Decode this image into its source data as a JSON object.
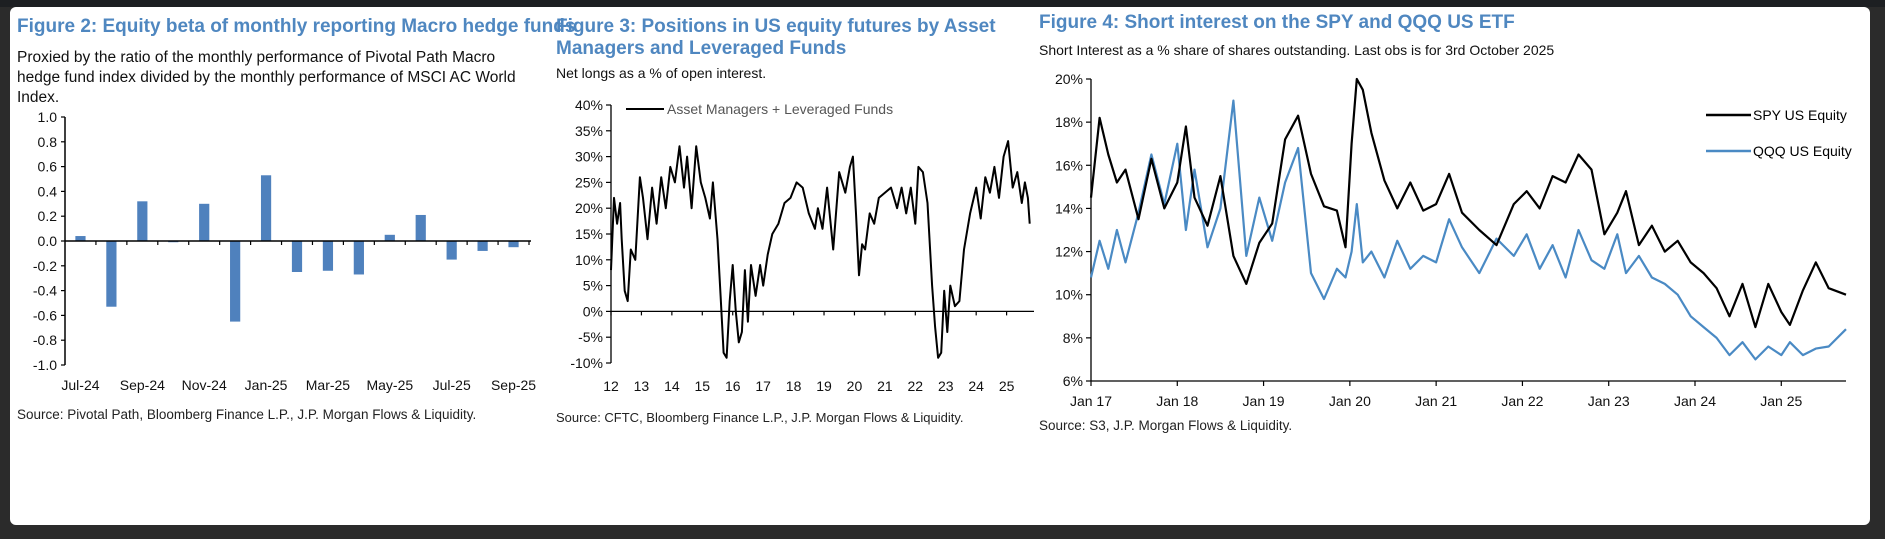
{
  "figures": [
    {
      "title": "Figure 2: Equity beta of monthly reporting Macro hedge funds",
      "subtitle": "Proxied by the ratio of the monthly performance of Pivotal Path Macro hedge fund index divided by the monthly performance of MSCI AC World Index.",
      "source": "Source: Pivotal Path, Bloomberg Finance L.P., J.P. Morgan Flows & Liquidity."
    },
    {
      "title": "Figure 3: Positions in US equity futures by Asset Managers and Leveraged Funds",
      "subtitle": "Net longs as a % of open interest.",
      "source": "Source: CFTC, Bloomberg Finance L.P., J.P. Morgan Flows & Liquidity."
    },
    {
      "title": "Figure 4: Short interest on the SPY and QQQ US ETF",
      "subtitle": "Short Interest as a % share of shares outstanding. Last obs is for 3rd October 2025",
      "source": "Source: S3, J.P. Morgan Flows & Liquidity."
    }
  ],
  "colors": {
    "title": "#4f87c0",
    "bar": "#4f81bd",
    "spy": "#000000",
    "qqq": "#4a8ac4",
    "background": "#2b2b2b"
  },
  "chart_data": [
    {
      "type": "bar",
      "title": "Figure 2: Equity beta of monthly reporting Macro hedge funds",
      "xlabel": "",
      "ylabel": "",
      "ylim": [
        -1.0,
        1.0
      ],
      "yticks": [
        "1.0",
        "0.8",
        "0.6",
        "0.4",
        "0.2",
        "0.0",
        "-0.2",
        "-0.4",
        "-0.6",
        "-0.8",
        "-1.0"
      ],
      "categories": [
        "Jul-24",
        "Aug-24",
        "Sep-24",
        "Oct-24",
        "Nov-24",
        "Dec-24",
        "Jan-25",
        "Feb-25",
        "Mar-25",
        "Apr-25",
        "May-25",
        "Jun-25",
        "Jul-25",
        "Aug-25",
        "Sep-25"
      ],
      "xtick_labels": [
        "Jul-24",
        "Sep-24",
        "Nov-24",
        "Jan-25",
        "Mar-25",
        "May-25",
        "Jul-25",
        "Sep-25"
      ],
      "values": [
        0.04,
        -0.53,
        0.32,
        -0.01,
        0.3,
        -0.65,
        0.53,
        -0.25,
        -0.24,
        -0.27,
        0.05,
        0.21,
        -0.15,
        -0.08,
        -0.05
      ],
      "legend": "none",
      "grid": false
    },
    {
      "type": "line",
      "title": "Figure 3: Positions in US equity futures by Asset Managers and Leveraged Funds",
      "xlabel": "",
      "ylabel": "Net longs as a % of open interest",
      "ylim": [
        -10,
        40
      ],
      "yticks": [
        "40%",
        "35%",
        "30%",
        "25%",
        "20%",
        "15%",
        "10%",
        "5%",
        "0%",
        "-5%",
        "-10%"
      ],
      "xlim": [
        2012,
        2025.9
      ],
      "xtick_labels": [
        "12",
        "13",
        "14",
        "15",
        "16",
        "17",
        "18",
        "19",
        "20",
        "21",
        "22",
        "23",
        "24",
        "25"
      ],
      "legend": "top",
      "grid": false,
      "series": [
        {
          "name": "Asset Managers + Leveraged Funds",
          "x": [
            2012.0,
            2012.1,
            2012.2,
            2012.3,
            2012.35,
            2012.45,
            2012.55,
            2012.65,
            2012.8,
            2012.95,
            2013.05,
            2013.2,
            2013.35,
            2013.5,
            2013.65,
            2013.8,
            2013.95,
            2014.1,
            2014.25,
            2014.4,
            2014.5,
            2014.65,
            2014.8,
            2014.95,
            2015.1,
            2015.25,
            2015.35,
            2015.5,
            2015.6,
            2015.7,
            2015.8,
            2015.9,
            2016.0,
            2016.1,
            2016.2,
            2016.3,
            2016.4,
            2016.5,
            2016.6,
            2016.75,
            2016.9,
            2017.0,
            2017.15,
            2017.3,
            2017.5,
            2017.7,
            2017.9,
            2018.1,
            2018.3,
            2018.5,
            2018.7,
            2018.8,
            2018.95,
            2019.1,
            2019.3,
            2019.5,
            2019.7,
            2019.85,
            2019.95,
            2020.05,
            2020.15,
            2020.25,
            2020.35,
            2020.5,
            2020.65,
            2020.8,
            2021.0,
            2021.2,
            2021.4,
            2021.55,
            2021.7,
            2021.85,
            2022.0,
            2022.1,
            2022.25,
            2022.4,
            2022.55,
            2022.65,
            2022.75,
            2022.85,
            2022.95,
            2023.05,
            2023.15,
            2023.3,
            2023.45,
            2023.6,
            2023.8,
            2024.0,
            2024.15,
            2024.3,
            2024.45,
            2024.6,
            2024.75,
            2024.9,
            2025.05,
            2025.2,
            2025.35,
            2025.5,
            2025.6,
            2025.7,
            2025.76
          ],
          "y": [
            8,
            22,
            17,
            21,
            14,
            4,
            2,
            12,
            10,
            26,
            22,
            14,
            24,
            17,
            26,
            20,
            28,
            25,
            32,
            24,
            30,
            20,
            32,
            25,
            22,
            18,
            25,
            14,
            3,
            -8,
            -9,
            2,
            9,
            0,
            -6,
            -4,
            8,
            -2,
            9,
            3,
            9,
            5,
            11,
            15,
            17,
            21,
            22,
            25,
            24,
            19,
            16,
            20,
            16,
            24,
            12,
            27,
            23,
            28,
            30,
            19,
            7,
            13,
            12,
            19,
            17,
            22,
            23,
            24,
            20,
            24,
            19,
            24,
            17,
            28,
            27,
            21,
            5,
            -3,
            -9,
            -8,
            4,
            -4,
            5,
            1,
            2,
            12,
            19,
            24,
            18,
            26,
            23,
            28,
            22,
            30,
            33,
            24,
            27,
            21,
            25,
            22,
            17
          ]
        }
      ]
    },
    {
      "type": "line",
      "title": "Figure 4: Short interest on the SPY and QQQ US ETF",
      "xlabel": "",
      "ylabel": "Short Interest as a % share of shares outstanding",
      "ylim": [
        6,
        20
      ],
      "yticks": [
        "20%",
        "18%",
        "16%",
        "14%",
        "12%",
        "10%",
        "8%",
        "6%"
      ],
      "xlim": [
        2017.0,
        2025.75
      ],
      "xtick_labels": [
        "Jan 17",
        "Jan 18",
        "Jan 19",
        "Jan 20",
        "Jan 21",
        "Jan 22",
        "Jan 23",
        "Jan 24",
        "Jan 25"
      ],
      "legend": "top-right",
      "grid": false,
      "series": [
        {
          "name": "SPY US Equity",
          "x": [
            2017.0,
            2017.1,
            2017.2,
            2017.3,
            2017.4,
            2017.55,
            2017.7,
            2017.85,
            2018.0,
            2018.1,
            2018.2,
            2018.35,
            2018.5,
            2018.65,
            2018.8,
            2018.95,
            2019.1,
            2019.25,
            2019.4,
            2019.55,
            2019.7,
            2019.85,
            2019.95,
            2020.02,
            2020.08,
            2020.15,
            2020.25,
            2020.4,
            2020.55,
            2020.7,
            2020.85,
            2021.0,
            2021.15,
            2021.3,
            2021.5,
            2021.7,
            2021.9,
            2022.05,
            2022.2,
            2022.35,
            2022.5,
            2022.65,
            2022.8,
            2022.95,
            2023.1,
            2023.2,
            2023.35,
            2023.5,
            2023.65,
            2023.8,
            2023.95,
            2024.1,
            2024.25,
            2024.4,
            2024.55,
            2024.7,
            2024.85,
            2025.0,
            2025.1,
            2025.25,
            2025.4,
            2025.55,
            2025.75
          ],
          "y": [
            14.5,
            18.2,
            16.5,
            15.2,
            15.8,
            13.5,
            16.3,
            14.0,
            15.2,
            17.8,
            14.5,
            13.2,
            15.5,
            11.8,
            10.5,
            12.4,
            13.3,
            17.2,
            18.3,
            15.6,
            14.1,
            13.9,
            12.2,
            17.0,
            20.0,
            19.5,
            17.5,
            15.3,
            14.0,
            15.2,
            13.9,
            14.2,
            15.6,
            13.8,
            13.0,
            12.3,
            14.2,
            14.8,
            14.0,
            15.5,
            15.2,
            16.5,
            15.8,
            12.8,
            13.8,
            14.8,
            12.3,
            13.2,
            12.0,
            12.5,
            11.5,
            11.0,
            10.3,
            9.0,
            10.5,
            8.5,
            10.5,
            9.2,
            8.6,
            10.2,
            11.5,
            10.3,
            10.0
          ]
        },
        {
          "name": "QQQ US Equity",
          "x": [
            2017.0,
            2017.1,
            2017.2,
            2017.3,
            2017.4,
            2017.55,
            2017.7,
            2017.85,
            2018.0,
            2018.1,
            2018.2,
            2018.35,
            2018.5,
            2018.65,
            2018.8,
            2018.95,
            2019.1,
            2019.25,
            2019.4,
            2019.55,
            2019.7,
            2019.85,
            2019.95,
            2020.02,
            2020.08,
            2020.15,
            2020.25,
            2020.4,
            2020.55,
            2020.7,
            2020.85,
            2021.0,
            2021.15,
            2021.3,
            2021.5,
            2021.7,
            2021.9,
            2022.05,
            2022.2,
            2022.35,
            2022.5,
            2022.65,
            2022.8,
            2022.95,
            2023.1,
            2023.2,
            2023.35,
            2023.5,
            2023.65,
            2023.8,
            2023.95,
            2024.1,
            2024.25,
            2024.4,
            2024.55,
            2024.7,
            2024.85,
            2025.0,
            2025.1,
            2025.25,
            2025.4,
            2025.55,
            2025.75
          ],
          "y": [
            10.8,
            12.5,
            11.2,
            13.0,
            11.5,
            13.8,
            16.5,
            14.2,
            17.0,
            13.0,
            15.8,
            12.2,
            14.0,
            19.0,
            11.8,
            14.5,
            12.5,
            15.2,
            16.8,
            11.0,
            9.8,
            11.2,
            10.8,
            12.0,
            14.2,
            11.5,
            12.0,
            10.8,
            12.5,
            11.2,
            11.8,
            11.5,
            13.5,
            12.2,
            11.0,
            12.6,
            11.8,
            12.8,
            11.2,
            12.3,
            10.8,
            13.0,
            11.6,
            11.2,
            12.8,
            11.0,
            11.8,
            10.8,
            10.5,
            10.0,
            9.0,
            8.5,
            8.0,
            7.2,
            7.8,
            7.0,
            7.6,
            7.2,
            7.8,
            7.2,
            7.5,
            7.6,
            8.4
          ]
        }
      ]
    }
  ]
}
